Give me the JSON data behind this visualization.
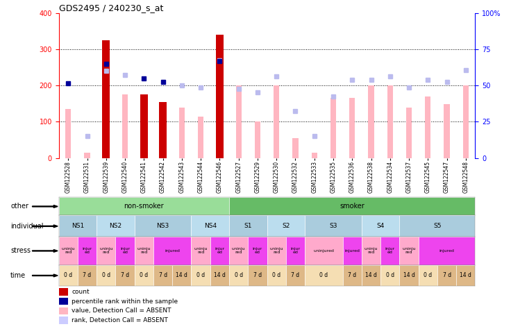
{
  "title": "GDS2495 / 240230_s_at",
  "samples": [
    "GSM122528",
    "GSM122531",
    "GSM122539",
    "GSM122540",
    "GSM122541",
    "GSM122542",
    "GSM122543",
    "GSM122544",
    "GSM122546",
    "GSM122527",
    "GSM122529",
    "GSM122530",
    "GSM122532",
    "GSM122533",
    "GSM122535",
    "GSM122536",
    "GSM122538",
    "GSM122534",
    "GSM122537",
    "GSM122545",
    "GSM122547",
    "GSM122548"
  ],
  "count_values": [
    0,
    0,
    325,
    0,
    175,
    155,
    0,
    0,
    340,
    0,
    0,
    0,
    0,
    0,
    0,
    0,
    0,
    0,
    0,
    0,
    0,
    0
  ],
  "value_absent": [
    135,
    15,
    210,
    175,
    0,
    140,
    140,
    115,
    100,
    200,
    100,
    200,
    55,
    15,
    165,
    165,
    200,
    200,
    140,
    170,
    148,
    200
  ],
  "rank_absent_pct": [
    0,
    15,
    60,
    57.5,
    0,
    0,
    50,
    48.75,
    67.5,
    47.5,
    45.5,
    56.25,
    32.5,
    15,
    42.5,
    53.75,
    53.75,
    56.25,
    48.75,
    53.75,
    52.5,
    60.75
  ],
  "percentile_present_pct": [
    51.75,
    0,
    65,
    0,
    55,
    52.5,
    0,
    0,
    67,
    0,
    0,
    0,
    0,
    0,
    0,
    0,
    0,
    0,
    0,
    0,
    0,
    0
  ],
  "ylim_left": [
    0,
    400
  ],
  "ylim_right": [
    0,
    100
  ],
  "yticks_left": [
    0,
    100,
    200,
    300,
    400
  ],
  "yticks_right": [
    0,
    25,
    50,
    75,
    100
  ],
  "ytick_labels_right": [
    "0",
    "25",
    "50",
    "75",
    "100%"
  ],
  "grid_lines": [
    100,
    200,
    300
  ],
  "other_row": [
    {
      "label": "non-smoker",
      "start": 0,
      "end": 9,
      "color": "#99DD99"
    },
    {
      "label": "smoker",
      "start": 9,
      "end": 22,
      "color": "#66BB66"
    }
  ],
  "individual_row": [
    {
      "label": "NS1",
      "start": 0,
      "end": 2,
      "color": "#AACCDD"
    },
    {
      "label": "NS2",
      "start": 2,
      "end": 4,
      "color": "#BBDDEE"
    },
    {
      "label": "NS3",
      "start": 4,
      "end": 7,
      "color": "#AACCDD"
    },
    {
      "label": "NS4",
      "start": 7,
      "end": 9,
      "color": "#BBDDEE"
    },
    {
      "label": "S1",
      "start": 9,
      "end": 11,
      "color": "#AACCDD"
    },
    {
      "label": "S2",
      "start": 11,
      "end": 13,
      "color": "#BBDDEE"
    },
    {
      "label": "S3",
      "start": 13,
      "end": 16,
      "color": "#AACCDD"
    },
    {
      "label": "S4",
      "start": 16,
      "end": 18,
      "color": "#BBDDEE"
    },
    {
      "label": "S5",
      "start": 18,
      "end": 22,
      "color": "#AACCDD"
    }
  ],
  "stress_row": [
    {
      "label": "uninju\nred",
      "start": 0,
      "end": 1,
      "color": "#FFAACC"
    },
    {
      "label": "injur\ned",
      "start": 1,
      "end": 2,
      "color": "#EE44EE"
    },
    {
      "label": "uninju\nred",
      "start": 2,
      "end": 3,
      "color": "#FFAACC"
    },
    {
      "label": "injur\ned",
      "start": 3,
      "end": 4,
      "color": "#EE44EE"
    },
    {
      "label": "uninju\nred",
      "start": 4,
      "end": 5,
      "color": "#FFAACC"
    },
    {
      "label": "injured",
      "start": 5,
      "end": 7,
      "color": "#EE44EE"
    },
    {
      "label": "uninju\nred",
      "start": 7,
      "end": 8,
      "color": "#FFAACC"
    },
    {
      "label": "injur\ned",
      "start": 8,
      "end": 9,
      "color": "#EE44EE"
    },
    {
      "label": "uninju\nred",
      "start": 9,
      "end": 10,
      "color": "#FFAACC"
    },
    {
      "label": "injur\ned",
      "start": 10,
      "end": 11,
      "color": "#EE44EE"
    },
    {
      "label": "uninju\nred",
      "start": 11,
      "end": 12,
      "color": "#FFAACC"
    },
    {
      "label": "injur\ned",
      "start": 12,
      "end": 13,
      "color": "#EE44EE"
    },
    {
      "label": "uninjured",
      "start": 13,
      "end": 15,
      "color": "#FFAACC"
    },
    {
      "label": "injured",
      "start": 15,
      "end": 16,
      "color": "#EE44EE"
    },
    {
      "label": "uninju\nred",
      "start": 16,
      "end": 17,
      "color": "#FFAACC"
    },
    {
      "label": "injur\ned",
      "start": 17,
      "end": 18,
      "color": "#EE44EE"
    },
    {
      "label": "uninju\nred",
      "start": 18,
      "end": 19,
      "color": "#FFAACC"
    },
    {
      "label": "injured",
      "start": 19,
      "end": 22,
      "color": "#EE44EE"
    }
  ],
  "time_row": [
    {
      "label": "0 d",
      "start": 0,
      "end": 1,
      "color": "#F5DEB3"
    },
    {
      "label": "7 d",
      "start": 1,
      "end": 2,
      "color": "#DEB887"
    },
    {
      "label": "0 d",
      "start": 2,
      "end": 3,
      "color": "#F5DEB3"
    },
    {
      "label": "7 d",
      "start": 3,
      "end": 4,
      "color": "#DEB887"
    },
    {
      "label": "0 d",
      "start": 4,
      "end": 5,
      "color": "#F5DEB3"
    },
    {
      "label": "7 d",
      "start": 5,
      "end": 6,
      "color": "#DEB887"
    },
    {
      "label": "14 d",
      "start": 6,
      "end": 7,
      "color": "#DEB887"
    },
    {
      "label": "0 d",
      "start": 7,
      "end": 8,
      "color": "#F5DEB3"
    },
    {
      "label": "14 d",
      "start": 8,
      "end": 9,
      "color": "#DEB887"
    },
    {
      "label": "0 d",
      "start": 9,
      "end": 10,
      "color": "#F5DEB3"
    },
    {
      "label": "7 d",
      "start": 10,
      "end": 11,
      "color": "#DEB887"
    },
    {
      "label": "0 d",
      "start": 11,
      "end": 12,
      "color": "#F5DEB3"
    },
    {
      "label": "7 d",
      "start": 12,
      "end": 13,
      "color": "#DEB887"
    },
    {
      "label": "0 d",
      "start": 13,
      "end": 15,
      "color": "#F5DEB3"
    },
    {
      "label": "7 d",
      "start": 15,
      "end": 16,
      "color": "#DEB887"
    },
    {
      "label": "14 d",
      "start": 16,
      "end": 17,
      "color": "#DEB887"
    },
    {
      "label": "0 d",
      "start": 17,
      "end": 18,
      "color": "#F5DEB3"
    },
    {
      "label": "14 d",
      "start": 18,
      "end": 19,
      "color": "#DEB887"
    },
    {
      "label": "0 d",
      "start": 19,
      "end": 20,
      "color": "#F5DEB3"
    },
    {
      "label": "7 d",
      "start": 20,
      "end": 21,
      "color": "#DEB887"
    },
    {
      "label": "14 d",
      "start": 21,
      "end": 22,
      "color": "#DEB887"
    }
  ],
  "legend_items": [
    {
      "label": "count",
      "color": "#CC0000"
    },
    {
      "label": "percentile rank within the sample",
      "color": "#000099"
    },
    {
      "label": "value, Detection Call = ABSENT",
      "color": "#FFB6C1"
    },
    {
      "label": "rank, Detection Call = ABSENT",
      "color": "#CCCCFF"
    }
  ],
  "row_labels": [
    "other",
    "individual",
    "stress",
    "time"
  ],
  "bar_width": 0.4,
  "absent_bar_width": 0.3
}
